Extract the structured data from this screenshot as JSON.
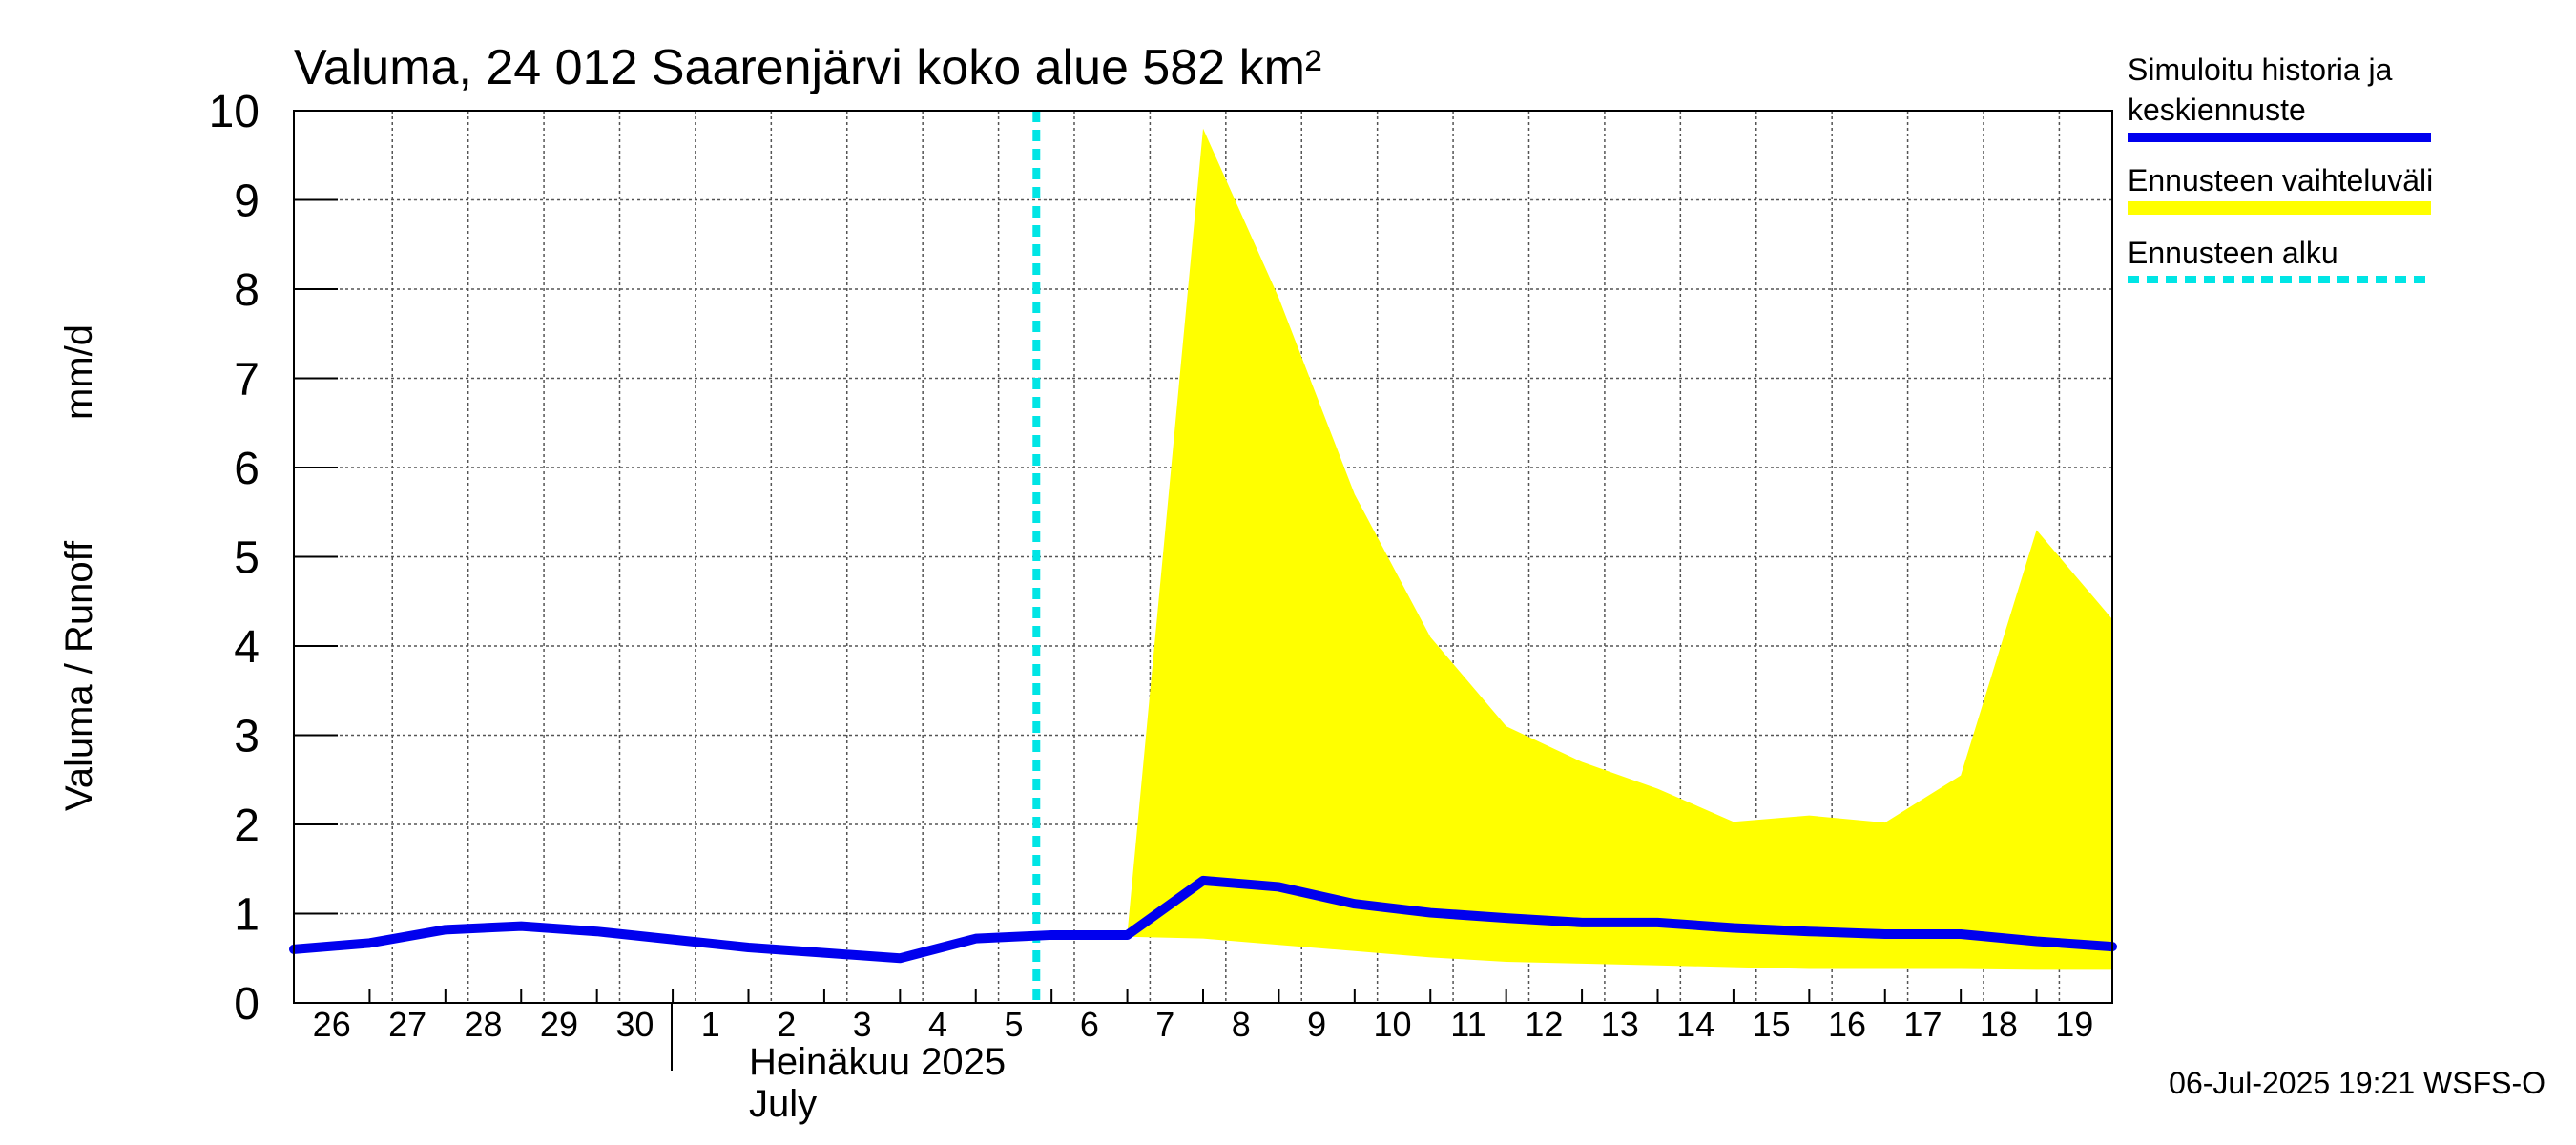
{
  "chart_data": {
    "type": "line",
    "title": "Valuma, 24 012 Saarenjärvi koko alue 582 km²",
    "ylabel_left": "Valuma / Runoff",
    "ylabel_right": "mm/d",
    "ylim": [
      0,
      10
    ],
    "yticks": [
      "0",
      "1",
      "2",
      "3",
      "4",
      "5",
      "6",
      "7",
      "8",
      "9",
      "10"
    ],
    "xticks": [
      "26",
      "27",
      "28",
      "29",
      "30",
      "1",
      "2",
      "3",
      "4",
      "5",
      "6",
      "7",
      "8",
      "9",
      "10",
      "11",
      "12",
      "13",
      "14",
      "15",
      "16",
      "17",
      "18",
      "19"
    ],
    "month_label": "Heinäkuu  2025",
    "month_label_en": "July",
    "x_range_days": [
      0,
      24
    ],
    "forecast_start_day": 10,
    "series": [
      {
        "name": "Simuloitu historia ja keskiennuste",
        "color": "#0000ee",
        "x": [
          0,
          1,
          2,
          3,
          4,
          5,
          6,
          7,
          8,
          9,
          10,
          11,
          12,
          13,
          14,
          15,
          16,
          17,
          18,
          19,
          20,
          21,
          22,
          23,
          24
        ],
        "values": [
          0.6,
          0.67,
          0.82,
          0.86,
          0.8,
          0.71,
          0.62,
          0.56,
          0.5,
          0.72,
          0.76,
          0.76,
          1.37,
          1.3,
          1.11,
          1.01,
          0.95,
          0.9,
          0.9,
          0.84,
          0.8,
          0.77,
          0.77,
          0.69,
          0.63
        ]
      },
      {
        "name": "Ennusteen vaihteluväli",
        "color": "#ffff00",
        "x": [
          10,
          11,
          12,
          13,
          14,
          15,
          16,
          17,
          18,
          19,
          20,
          21,
          22,
          23,
          24
        ],
        "upper": [
          0.76,
          0.78,
          9.8,
          7.9,
          5.7,
          4.1,
          3.1,
          2.7,
          2.4,
          2.03,
          2.1,
          2.02,
          2.55,
          5.3,
          4.3
        ],
        "lower": [
          0.76,
          0.74,
          0.72,
          0.65,
          0.58,
          0.51,
          0.46,
          0.44,
          0.42,
          0.4,
          0.38,
          0.38,
          0.38,
          0.37,
          0.37
        ]
      }
    ],
    "legend": [
      {
        "label_line1": "Simuloitu historia ja",
        "label_line2": "keskiennuste",
        "color": "#0000ee",
        "style": "solid"
      },
      {
        "label_line1": "Ennusteen vaihteluväli",
        "label_line2": "",
        "color": "#ffff00",
        "style": "solid"
      },
      {
        "label_line1": "Ennusteen alku",
        "label_line2": "",
        "color": "#00e5e5",
        "style": "dashed"
      }
    ],
    "legend_position": "right",
    "grid": true
  },
  "footer": "06-Jul-2025 19:21 WSFS-O"
}
